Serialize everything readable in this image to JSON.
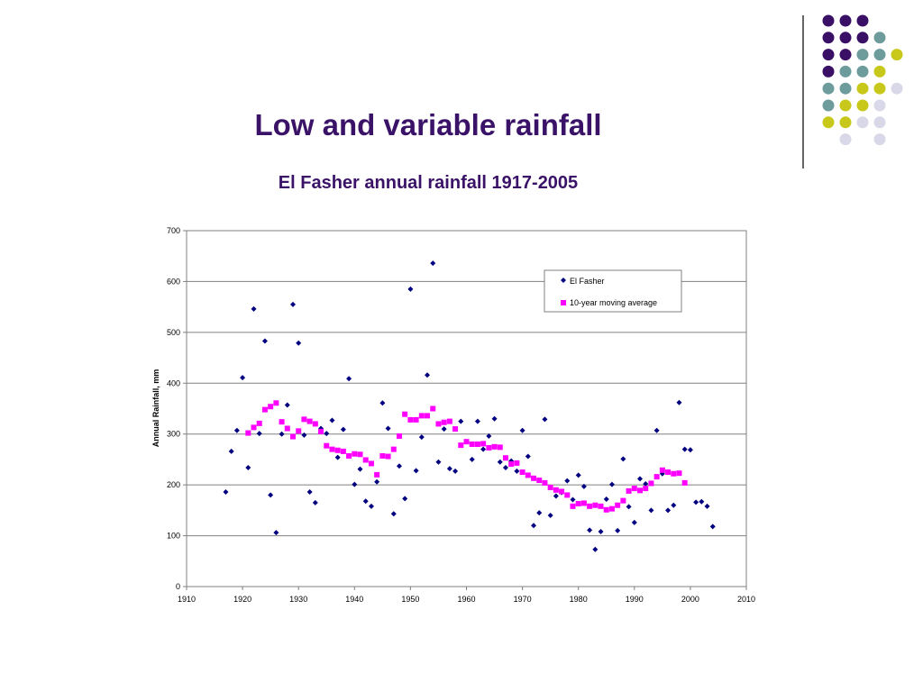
{
  "slide": {
    "title": "Low and variable rainfall",
    "subtitle": "El Fasher annual rainfall 1917-2005"
  },
  "decoration": {
    "colors": [
      "#3a0f66",
      "#6e9b9b",
      "#c8c81a",
      "#d8d8e8"
    ],
    "dot_grid": [
      [
        0,
        0,
        0,
        -1,
        -1
      ],
      [
        0,
        0,
        0,
        1,
        -1
      ],
      [
        0,
        0,
        1,
        1,
        2
      ],
      [
        0,
        1,
        1,
        2,
        -1
      ],
      [
        1,
        1,
        2,
        2,
        3
      ],
      [
        1,
        2,
        2,
        3,
        -1
      ],
      [
        2,
        2,
        3,
        3,
        -1
      ],
      [
        -1,
        3,
        -1,
        3,
        -1
      ]
    ]
  },
  "chart_data": {
    "type": "scatter",
    "title": "",
    "xlabel": "",
    "ylabel": "Annual Rainfall, mm",
    "xlim": [
      1910,
      2010
    ],
    "ylim": [
      0,
      700
    ],
    "xticks": [
      1910,
      1920,
      1930,
      1940,
      1950,
      1960,
      1970,
      1980,
      1990,
      2000,
      2010
    ],
    "yticks": [
      0,
      100,
      200,
      300,
      400,
      500,
      600,
      700
    ],
    "grid": "horizontal",
    "legend_position": "top-right",
    "series": [
      {
        "name": "El Fasher",
        "marker": "diamond",
        "color": "#000080",
        "points": [
          [
            1917,
            186
          ],
          [
            1918,
            266
          ],
          [
            1919,
            307
          ],
          [
            1920,
            411
          ],
          [
            1921,
            234
          ],
          [
            1922,
            546
          ],
          [
            1923,
            301
          ],
          [
            1924,
            483
          ],
          [
            1925,
            180
          ],
          [
            1926,
            106
          ],
          [
            1927,
            300
          ],
          [
            1928,
            357
          ],
          [
            1929,
            555
          ],
          [
            1930,
            479
          ],
          [
            1931,
            298
          ],
          [
            1932,
            186
          ],
          [
            1933,
            165
          ],
          [
            1934,
            311
          ],
          [
            1935,
            301
          ],
          [
            1936,
            327
          ],
          [
            1937,
            254
          ],
          [
            1938,
            309
          ],
          [
            1939,
            409
          ],
          [
            1940,
            201
          ],
          [
            1941,
            231
          ],
          [
            1942,
            168
          ],
          [
            1943,
            158
          ],
          [
            1944,
            206
          ],
          [
            1945,
            361
          ],
          [
            1946,
            311
          ],
          [
            1947,
            143
          ],
          [
            1948,
            237
          ],
          [
            1949,
            173
          ],
          [
            1950,
            585
          ],
          [
            1951,
            228
          ],
          [
            1952,
            294
          ],
          [
            1953,
            416
          ],
          [
            1954,
            636
          ],
          [
            1955,
            245
          ],
          [
            1956,
            310
          ],
          [
            1957,
            232
          ],
          [
            1958,
            227
          ],
          [
            1959,
            325
          ],
          [
            1961,
            250
          ],
          [
            1962,
            325
          ],
          [
            1963,
            270
          ],
          [
            1964,
            296
          ],
          [
            1965,
            330
          ],
          [
            1966,
            245
          ],
          [
            1967,
            234
          ],
          [
            1968,
            247
          ],
          [
            1969,
            227
          ],
          [
            1970,
            307
          ],
          [
            1971,
            256
          ],
          [
            1972,
            120
          ],
          [
            1973,
            145
          ],
          [
            1974,
            329
          ],
          [
            1975,
            140
          ],
          [
            1976,
            178
          ],
          [
            1977,
            185
          ],
          [
            1978,
            208
          ],
          [
            1979,
            171
          ],
          [
            1980,
            219
          ],
          [
            1981,
            197
          ],
          [
            1982,
            111
          ],
          [
            1983,
            73
          ],
          [
            1984,
            108
          ],
          [
            1985,
            172
          ],
          [
            1986,
            201
          ],
          [
            1987,
            110
          ],
          [
            1988,
            251
          ],
          [
            1989,
            157
          ],
          [
            1990,
            126
          ],
          [
            1991,
            212
          ],
          [
            1992,
            202
          ],
          [
            1993,
            150
          ],
          [
            1994,
            307
          ],
          [
            1995,
            222
          ],
          [
            1996,
            150
          ],
          [
            1997,
            160
          ],
          [
            1998,
            362
          ],
          [
            1999,
            270
          ],
          [
            2000,
            269
          ],
          [
            2001,
            166
          ],
          [
            2002,
            167
          ],
          [
            2003,
            158
          ],
          [
            2004,
            118
          ]
        ]
      },
      {
        "name": "10-year moving average",
        "marker": "square",
        "color": "#ff00ff",
        "points": [
          [
            1921,
            302
          ],
          [
            1922,
            313
          ],
          [
            1923,
            321
          ],
          [
            1924,
            348
          ],
          [
            1925,
            354
          ],
          [
            1926,
            361
          ],
          [
            1927,
            324
          ],
          [
            1928,
            311
          ],
          [
            1929,
            295
          ],
          [
            1930,
            306
          ],
          [
            1931,
            329
          ],
          [
            1932,
            325
          ],
          [
            1933,
            320
          ],
          [
            1934,
            305
          ],
          [
            1935,
            277
          ],
          [
            1936,
            270
          ],
          [
            1937,
            268
          ],
          [
            1938,
            266
          ],
          [
            1939,
            257
          ],
          [
            1940,
            261
          ],
          [
            1941,
            260
          ],
          [
            1942,
            249
          ],
          [
            1943,
            242
          ],
          [
            1944,
            220
          ],
          [
            1945,
            257
          ],
          [
            1946,
            256
          ],
          [
            1947,
            270
          ],
          [
            1948,
            296
          ],
          [
            1949,
            339
          ],
          [
            1950,
            328
          ],
          [
            1951,
            328
          ],
          [
            1952,
            336
          ],
          [
            1953,
            336
          ],
          [
            1954,
            350
          ],
          [
            1955,
            320
          ],
          [
            1956,
            323
          ],
          [
            1957,
            325
          ],
          [
            1958,
            310
          ],
          [
            1959,
            278
          ],
          [
            1960,
            285
          ],
          [
            1961,
            280
          ],
          [
            1962,
            280
          ],
          [
            1963,
            281
          ],
          [
            1964,
            273
          ],
          [
            1965,
            275
          ],
          [
            1966,
            274
          ],
          [
            1967,
            253
          ],
          [
            1968,
            241
          ],
          [
            1969,
            243
          ],
          [
            1970,
            225
          ],
          [
            1971,
            219
          ],
          [
            1972,
            213
          ],
          [
            1973,
            209
          ],
          [
            1974,
            204
          ],
          [
            1975,
            195
          ],
          [
            1976,
            190
          ],
          [
            1977,
            187
          ],
          [
            1978,
            180
          ],
          [
            1979,
            158
          ],
          [
            1980,
            163
          ],
          [
            1981,
            164
          ],
          [
            1982,
            158
          ],
          [
            1983,
            160
          ],
          [
            1984,
            158
          ],
          [
            1985,
            151
          ],
          [
            1986,
            153
          ],
          [
            1987,
            160
          ],
          [
            1988,
            169
          ],
          [
            1989,
            188
          ],
          [
            1990,
            193
          ],
          [
            1991,
            189
          ],
          [
            1992,
            193
          ],
          [
            1993,
            203
          ],
          [
            1994,
            216
          ],
          [
            1995,
            229
          ],
          [
            1996,
            225
          ],
          [
            1997,
            222
          ],
          [
            1998,
            223
          ],
          [
            1999,
            204
          ]
        ]
      }
    ]
  }
}
